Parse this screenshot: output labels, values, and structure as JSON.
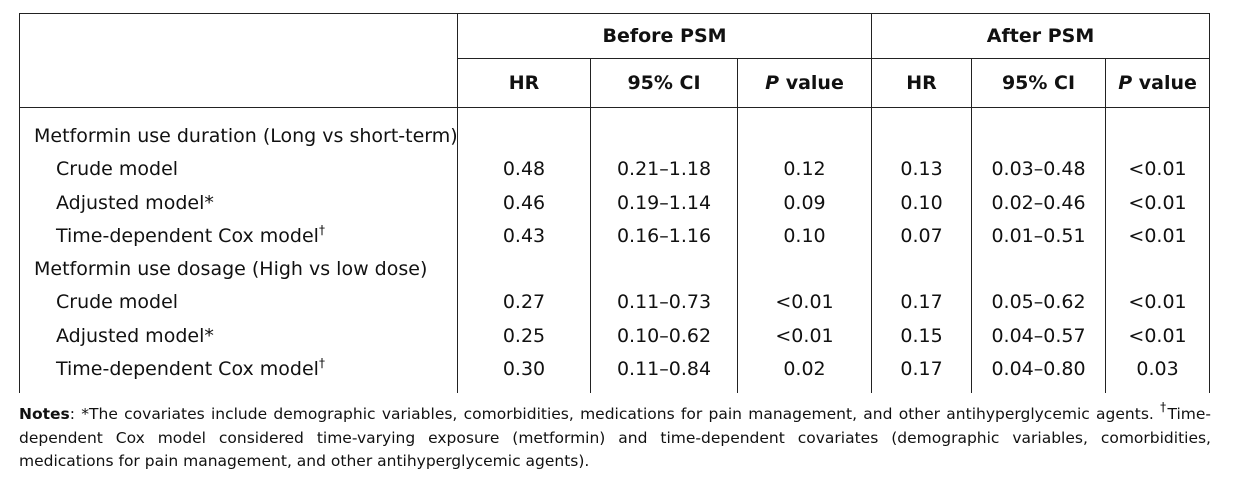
{
  "table": {
    "group_headers": {
      "before": "Before PSM",
      "after": "After PSM"
    },
    "sub_headers": {
      "hr": "HR",
      "ci": "95% CI",
      "p_italic": "P",
      "p_rest": " value"
    },
    "sections": [
      {
        "title": "Metformin use duration (Long vs short-term)",
        "rows": [
          {
            "label": "Crude model",
            "sup": "",
            "before": [
              "0.48",
              "0.21–1.18",
              "0.12"
            ],
            "after": [
              "0.13",
              "0.03–0.48",
              "<0.01"
            ]
          },
          {
            "label": "Adjusted model*",
            "sup": "",
            "before": [
              "0.46",
              "0.19–1.14",
              "0.09"
            ],
            "after": [
              "0.10",
              "0.02–0.46",
              "<0.01"
            ]
          },
          {
            "label": "Time-dependent Cox model",
            "sup": "†",
            "before": [
              "0.43",
              "0.16–1.16",
              "0.10"
            ],
            "after": [
              "0.07",
              "0.01–0.51",
              "<0.01"
            ]
          }
        ]
      },
      {
        "title": "Metformin use dosage (High vs low dose)",
        "rows": [
          {
            "label": "Crude model",
            "sup": "",
            "before": [
              "0.27",
              "0.11–0.73",
              "<0.01"
            ],
            "after": [
              "0.17",
              "0.05–0.62",
              "<0.01"
            ]
          },
          {
            "label": "Adjusted model*",
            "sup": "",
            "before": [
              "0.25",
              "0.10–0.62",
              "<0.01"
            ],
            "after": [
              "0.15",
              "0.04–0.57",
              "<0.01"
            ]
          },
          {
            "label": "Time-dependent Cox model",
            "sup": "†",
            "before": [
              "0.30",
              "0.11–0.84",
              "0.02"
            ],
            "after": [
              "0.17",
              "0.04–0.80",
              "0.03"
            ]
          }
        ]
      }
    ]
  },
  "notes": {
    "label": "Notes",
    "colon": ": ",
    "part1": "*The covariates include demographic variables, comorbidities, medications for pain management, and other antihyperglycemic agents. ",
    "dagger": "†",
    "part2": "Time-dependent Cox model considered time-varying exposure (metformin) and time-dependent covariates (demographic variables, comorbidities, medications for pain management, and other antihyperglycemic agents)."
  }
}
